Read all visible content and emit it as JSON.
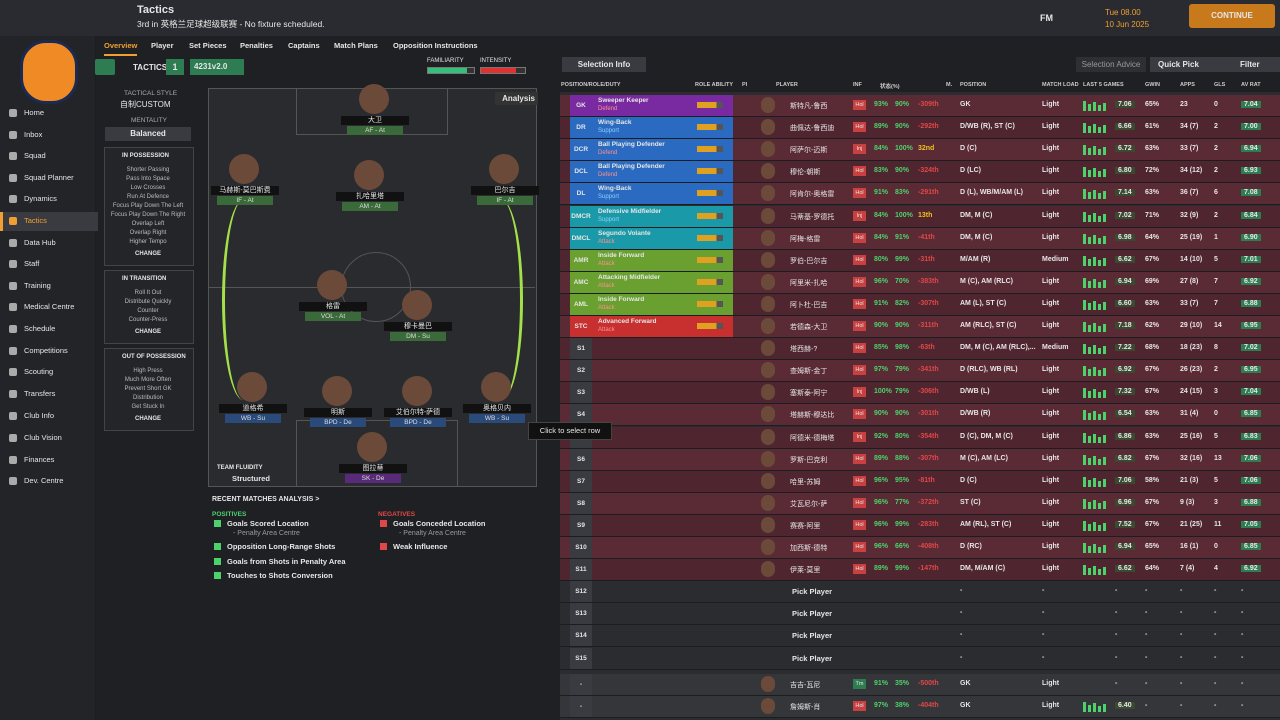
{
  "header": {
    "title": "Tactics",
    "subtitle": "3rd in 英格兰足球超级联赛 - No fixture scheduled.",
    "logo": "FM",
    "time": "Tue 08.00",
    "date": "10 Jun 2025",
    "continue": "CONTINUE"
  },
  "nav": [
    "Home",
    "Inbox",
    "Squad",
    "Squad Planner",
    "Dynamics",
    "Tactics",
    "Data Hub",
    "Staff",
    "Training",
    "Medical Centre",
    "Schedule",
    "Competitions",
    "Scouting",
    "Transfers",
    "Club Info",
    "Club Vision",
    "Finances",
    "Dev. Centre"
  ],
  "tabs": [
    "Overview",
    "Player",
    "Set Pieces",
    "Penalties",
    "Captains",
    "Match Plans",
    "Opposition Instructions"
  ],
  "tactic": {
    "label": "TACTICS",
    "slot": "1",
    "name": "4231v2.0",
    "familiarity": "FAMILIARITY",
    "intensity": "INTENSITY",
    "analysis": "Analysis"
  },
  "style": {
    "label": "TACTICAL STYLE",
    "value": "自制CUSTOM",
    "mentality_label": "MENTALITY",
    "mentality": "Balanced"
  },
  "phases": [
    {
      "title": "IN POSSESSION",
      "items": [
        "Shorter Passing",
        "Pass Into Space",
        "Low Crosses",
        "Run At Defence",
        "Focus Play Down The Left",
        "Focus Play Down The Right",
        "Overlap Left",
        "Overlap Right",
        "Higher Tempo"
      ],
      "change": "CHANGE"
    },
    {
      "title": "IN TRANSITION",
      "items": [
        "Roll It Out",
        "Distribute Quickly",
        "Counter",
        "Counter-Press"
      ],
      "change": "CHANGE"
    },
    {
      "title": "OUT OF POSSESSION",
      "items": [
        "High Press",
        "Much More Often",
        "Prevent Short GK",
        "Distribution",
        "Get Stuck In"
      ],
      "change": "CHANGE"
    }
  ],
  "pitch": [
    {
      "name": "大卫",
      "role": "AF - At"
    },
    {
      "name": "马赫斯-莫巴斯费",
      "role": "IF - At"
    },
    {
      "name": "扎哈里塔",
      "role": "AM - At"
    },
    {
      "name": "巴尔吉",
      "role": "IF - At"
    },
    {
      "name": "格雷",
      "role": "VOL - At"
    },
    {
      "name": "穆卡曼巴",
      "role": "DM - Su"
    },
    {
      "name": "道格希",
      "role": "WB - Su"
    },
    {
      "name": "明斯",
      "role": "BPD - De"
    },
    {
      "name": "艾伯尔特-萨德",
      "role": "BPD - De"
    },
    {
      "name": "奥格贝内",
      "role": "WB - Su"
    },
    {
      "name": "图拉蒂",
      "role": "SK - De"
    }
  ],
  "fluidity": {
    "label": "TEAM FLUIDITY",
    "value": "Structured"
  },
  "analysis": {
    "title": "RECENT MATCHES ANALYSIS >",
    "positives_label": "POSITIVES",
    "positives": [
      {
        "text": "Goals Scored Location",
        "sub": "- Penalty Area Centre"
      },
      {
        "text": "Opposition Long-Range Shots"
      },
      {
        "text": "Goals from Shots in Penalty Area"
      },
      {
        "text": "Touches to Shots Conversion"
      }
    ],
    "negatives_label": "NEGATIVES",
    "negatives": [
      {
        "text": "Goals Conceded Location",
        "sub": "- Penalty Area Centre"
      },
      {
        "text": "Weak Influence"
      }
    ]
  },
  "toolbar": {
    "selection_info": "Selection Info",
    "selection_advice": "Selection Advice",
    "quick_pick": "Quick Pick",
    "filter": "Filter"
  },
  "table": {
    "columns": [
      "POSITION/ROLE/DUTY",
      "ROLE ABILITY",
      "PI",
      "PLAYER",
      "INF",
      "状态(%)",
      "M.",
      "POSITION",
      "MATCH LOAD",
      "LAST 5 GAMES",
      "GWIN",
      "APPS",
      "GLS",
      "AV RAT"
    ],
    "rows": [
      {
        "pos": "GK",
        "role": "Sweeper Keeper",
        "duty": "Defend",
        "player": "斯特凡-鲁西",
        "inf": "Hol",
        "cond": "93%",
        "sharp": "90%",
        "rank": "-309th",
        "position": "GK",
        "load": "Light",
        "last5": "7.06",
        "gwin": "65%",
        "apps": "23",
        "gls": "0",
        "avrat": "7.04"
      },
      {
        "pos": "DR",
        "role": "Wing-Back",
        "duty": "Support",
        "player": "曲佩达-鲁西迪",
        "inf": "Hol",
        "cond": "89%",
        "sharp": "90%",
        "rank": "-292th",
        "position": "D/WB (R), ST (C)",
        "load": "Light",
        "last5": "6.66",
        "gwin": "61%",
        "apps": "34 (7)",
        "gls": "2",
        "avrat": "7.00"
      },
      {
        "pos": "DCR",
        "role": "Ball Playing Defender",
        "duty": "Defend",
        "player": "阿萨尔-迈斯",
        "inf": "Inj",
        "cond": "84%",
        "sharp": "100%",
        "rank": "32nd",
        "position": "D (C)",
        "load": "Light",
        "last5": "6.72",
        "gwin": "63%",
        "apps": "33 (7)",
        "gls": "2",
        "avrat": "6.94"
      },
      {
        "pos": "DCL",
        "role": "Ball Playing Defender",
        "duty": "Defend",
        "player": "穆伦-朝斯",
        "inf": "Hol",
        "cond": "83%",
        "sharp": "90%",
        "rank": "-324th",
        "position": "D (LC)",
        "load": "Light",
        "last5": "6.80",
        "gwin": "72%",
        "apps": "34 (12)",
        "gls": "2",
        "avrat": "6.93"
      },
      {
        "pos": "DL",
        "role": "Wing-Back",
        "duty": "Support",
        "player": "阿肯尔-奥格雷",
        "inf": "Hol",
        "cond": "91%",
        "sharp": "83%",
        "rank": "-291th",
        "position": "D (L), WB/M/AM (L)",
        "load": "Light",
        "last5": "7.14",
        "gwin": "63%",
        "apps": "36 (7)",
        "gls": "6",
        "avrat": "7.08"
      },
      {
        "pos": "DMCR",
        "role": "Defensive Midfielder",
        "duty": "Support",
        "player": "马蒂基-罗德托",
        "inf": "Inj",
        "cond": "84%",
        "sharp": "100%",
        "rank": "13th",
        "position": "DM, M (C)",
        "load": "Light",
        "last5": "7.02",
        "gwin": "71%",
        "apps": "32 (9)",
        "gls": "2",
        "avrat": "6.84"
      },
      {
        "pos": "DMCL",
        "role": "Segundo Volante",
        "duty": "Attack",
        "player": "阿梅-格雷",
        "inf": "Hol",
        "cond": "84%",
        "sharp": "91%",
        "rank": "-41th",
        "position": "DM, M (C)",
        "load": "Light",
        "last5": "6.98",
        "gwin": "64%",
        "apps": "25 (19)",
        "gls": "1",
        "avrat": "6.90"
      },
      {
        "pos": "AMR",
        "role": "Inside Forward",
        "duty": "Attack",
        "player": "罗伯-巴尔吉",
        "inf": "Hol",
        "cond": "80%",
        "sharp": "99%",
        "rank": "-31th",
        "position": "M/AM (R)",
        "load": "Medium",
        "last5": "6.62",
        "gwin": "67%",
        "apps": "14 (10)",
        "gls": "5",
        "avrat": "7.01"
      },
      {
        "pos": "AMC",
        "role": "Attacking Midfielder",
        "duty": "Attack",
        "player": "阿里米-扎哈",
        "inf": "Hol",
        "cond": "96%",
        "sharp": "70%",
        "rank": "-383th",
        "position": "M (C), AM (RLC)",
        "load": "Light",
        "last5": "6.94",
        "gwin": "69%",
        "apps": "27 (8)",
        "gls": "7",
        "avrat": "6.92"
      },
      {
        "pos": "AML",
        "role": "Inside Forward",
        "duty": "Attack",
        "player": "阿卜杜-巴吉",
        "inf": "Hol",
        "cond": "91%",
        "sharp": "82%",
        "rank": "-307th",
        "position": "AM (L), ST (C)",
        "load": "Light",
        "last5": "6.60",
        "gwin": "63%",
        "apps": "33 (7)",
        "gls": "7",
        "avrat": "6.88"
      },
      {
        "pos": "STC",
        "role": "Advanced Forward",
        "duty": "Attack",
        "player": "若德森-大卫",
        "inf": "Hol",
        "cond": "90%",
        "sharp": "90%",
        "rank": "-311th",
        "position": "AM (RLC), ST (C)",
        "load": "Light",
        "last5": "7.18",
        "gwin": "62%",
        "apps": "29 (10)",
        "gls": "14",
        "avrat": "6.95"
      },
      {
        "pos": "S1",
        "player": "塔西赫-?",
        "inf": "Hol",
        "cond": "85%",
        "sharp": "98%",
        "rank": "-63th",
        "position": "DM, M (C), AM (RLC),...",
        "load": "Medium",
        "last5": "7.22",
        "gwin": "68%",
        "apps": "18 (23)",
        "gls": "8",
        "avrat": "7.02"
      },
      {
        "pos": "S2",
        "player": "查姆斯-金丁",
        "inf": "Hol",
        "cond": "97%",
        "sharp": "79%",
        "rank": "-341th",
        "position": "D (RLC), WB (RL)",
        "load": "Light",
        "last5": "6.92",
        "gwin": "67%",
        "apps": "26 (23)",
        "gls": "2",
        "avrat": "6.95"
      },
      {
        "pos": "S3",
        "player": "塞斯泰-阿宁",
        "inf": "Inj",
        "cond": "100%",
        "sharp": "79%",
        "rank": "-306th",
        "position": "D/WB (L)",
        "load": "Light",
        "last5": "7.32",
        "gwin": "67%",
        "apps": "24 (15)",
        "gls": "3",
        "avrat": "7.04"
      },
      {
        "pos": "S4",
        "player": "塔赫斯-穆达比",
        "inf": "Hol",
        "cond": "90%",
        "sharp": "90%",
        "rank": "-301th",
        "position": "D/WB (R)",
        "load": "Light",
        "last5": "6.54",
        "gwin": "63%",
        "apps": "31 (4)",
        "gls": "0",
        "avrat": "6.85"
      },
      {
        "pos": "S5",
        "player": "阿德米-德梅塔",
        "inf": "Inj",
        "cond": "92%",
        "sharp": "80%",
        "rank": "-354th",
        "position": "D (C), DM, M (C)",
        "load": "Light",
        "last5": "6.86",
        "gwin": "63%",
        "apps": "25 (16)",
        "gls": "5",
        "avrat": "6.83"
      },
      {
        "pos": "S6",
        "player": "罗斯-巴克利",
        "inf": "Hol",
        "cond": "89%",
        "sharp": "88%",
        "rank": "-307th",
        "position": "M (C), AM (LC)",
        "load": "Light",
        "last5": "6.82",
        "gwin": "67%",
        "apps": "32 (16)",
        "gls": "13",
        "avrat": "7.06"
      },
      {
        "pos": "S7",
        "player": "哈里-苏姆",
        "inf": "Hol",
        "cond": "96%",
        "sharp": "95%",
        "rank": "-81th",
        "position": "D (C)",
        "load": "Light",
        "last5": "7.06",
        "gwin": "58%",
        "apps": "21 (3)",
        "gls": "5",
        "avrat": "7.06"
      },
      {
        "pos": "S8",
        "player": "艾瓦尼尔-萨",
        "inf": "Hol",
        "cond": "96%",
        "sharp": "77%",
        "rank": "-372th",
        "position": "ST (C)",
        "load": "Light",
        "last5": "6.96",
        "gwin": "67%",
        "apps": "9 (3)",
        "gls": "3",
        "avrat": "6.88"
      },
      {
        "pos": "S9",
        "player": "赛赛-阿里",
        "inf": "Hol",
        "cond": "96%",
        "sharp": "99%",
        "rank": "-283th",
        "position": "AM (RL), ST (C)",
        "load": "Light",
        "last5": "7.52",
        "gwin": "67%",
        "apps": "21 (25)",
        "gls": "11",
        "avrat": "7.05"
      },
      {
        "pos": "S10",
        "player": "加西斯-德特",
        "inf": "Hol",
        "cond": "96%",
        "sharp": "66%",
        "rank": "-408th",
        "position": "D (RC)",
        "load": "Light",
        "last5": "6.94",
        "gwin": "65%",
        "apps": "16 (1)",
        "gls": "0",
        "avrat": "6.85"
      },
      {
        "pos": "S11",
        "player": "伊莱-莫里",
        "inf": "Hol",
        "cond": "89%",
        "sharp": "99%",
        "rank": "-147th",
        "position": "DM, M/AM (C)",
        "load": "Light",
        "last5": "6.62",
        "gwin": "64%",
        "apps": "7 (4)",
        "gls": "4",
        "avrat": "6.92"
      },
      {
        "pos": "S12",
        "player": "Pick Player",
        "position": "-",
        "load": "-",
        "last5": "-",
        "gwin": "-",
        "apps": "-",
        "gls": "-",
        "avrat": "-"
      },
      {
        "pos": "S13",
        "player": "Pick Player",
        "position": "-",
        "load": "-",
        "last5": "-",
        "gwin": "-",
        "apps": "-",
        "gls": "-",
        "avrat": "-"
      },
      {
        "pos": "S14",
        "player": "Pick Player",
        "position": "-",
        "load": "-",
        "last5": "-",
        "gwin": "-",
        "apps": "-",
        "gls": "-",
        "avrat": "-"
      },
      {
        "pos": "S15",
        "player": "Pick Player",
        "position": "-",
        "load": "-",
        "last5": "-",
        "gwin": "-",
        "apps": "-",
        "gls": "-",
        "avrat": "-"
      },
      {
        "pos": "-",
        "player": "吉吉-瓦尼",
        "inf": "Tm",
        "cond": "91%",
        "sharp": "35%",
        "rank": "-500th",
        "position": "GK",
        "load": "Light",
        "last5": "-",
        "gwin": "-",
        "apps": "-",
        "gls": "-",
        "avrat": "-"
      },
      {
        "pos": "-",
        "player": "詹姆斯-肖",
        "inf": "Hol",
        "cond": "97%",
        "sharp": "38%",
        "rank": "-404th",
        "position": "GK",
        "load": "Light",
        "last5": "6.40",
        "gwin": "-",
        "apps": "-",
        "gls": "-",
        "avrat": "-"
      }
    ]
  },
  "tooltip": "Click to select row"
}
